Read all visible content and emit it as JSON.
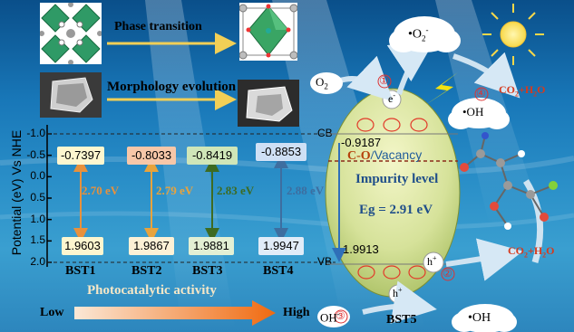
{
  "top": {
    "phase_transition": "Phase transition",
    "morphology_evolution": "Morphology evolution"
  },
  "axis": {
    "ylabel": "Potential (eV) Vs NHE",
    "ticks": [
      "-1.0",
      "-0.5",
      "0.0",
      "0.5",
      "1.0",
      "1.5",
      "2.0"
    ],
    "cb_label": "CB",
    "vb_label": "VB"
  },
  "samples": [
    {
      "name": "BST1",
      "cb": "-0.7397",
      "vb": "1.9603",
      "gap": "2.70 eV",
      "cb_color": "#fdf6cf",
      "gap_color": "#e8913c"
    },
    {
      "name": "BST2",
      "cb": "-0.8033",
      "vb": "1.9867",
      "gap": "2.79 eV",
      "cb_color": "#f7c7a8",
      "gap_color": "#e8a33c"
    },
    {
      "name": "BST3",
      "cb": "-0.8419",
      "vb": "1.9881",
      "gap": "2.83 eV",
      "cb_color": "#cfe6b8",
      "gap_color": "#3d6b22"
    },
    {
      "name": "BST4",
      "cb": "-0.8853",
      "vb": "1.9947",
      "gap": "2.88 eV",
      "cb_color": "#cfe0f5",
      "gap_color": "#3d6ea0"
    }
  ],
  "bst5": {
    "name": "BST5",
    "cb": "-0.9187",
    "vb": "1.9913",
    "defect_main": "C-O",
    "defect_sep": "/",
    "defect_rest": "Vacancy",
    "impurity": "Impurity level",
    "eg": "Eg = 2.91 eV"
  },
  "reactions": {
    "o2": "O",
    "o2_sub": "2",
    "superoxide": "•O",
    "superoxide_sub": "2",
    "superoxide_sup": "-",
    "oh_top": "•OH",
    "oh_bottom": "•OH",
    "oh_ion": "OH",
    "oh_ion_sup": "-",
    "co2_top": "CO",
    "co2_top_sub": "2",
    "co2_top_rest": "+H",
    "co2_top_sub2": "2",
    "co2_top_end": "O",
    "co2_bottom": "CO",
    "co2_bottom_sub": "2",
    "co2_bottom_rest": "+H",
    "co2_bottom_sub2": "2",
    "co2_bottom_end": "O",
    "electron": "e",
    "electron_sup": "-",
    "hole": "h",
    "hole_sup": "+",
    "step1": "①",
    "step2": "②",
    "step3": "③",
    "step4": "④"
  },
  "activity": {
    "title": "Photocatalytic activity",
    "low": "Low",
    "high": "High"
  }
}
